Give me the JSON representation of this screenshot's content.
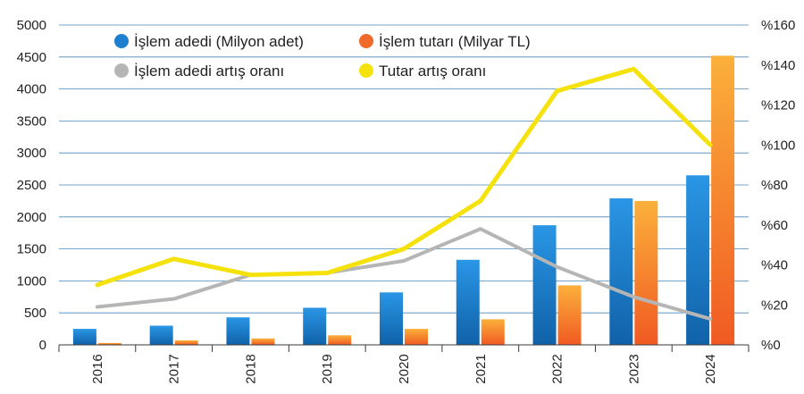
{
  "chart_data": {
    "type": "bar+line",
    "categories": [
      "2016",
      "2017",
      "2018",
      "2019",
      "2020",
      "2021",
      "2022",
      "2023",
      "2024"
    ],
    "series": [
      {
        "name": "İşlem adedi (Milyon adet)",
        "kind": "bar",
        "axis": "left",
        "color": "#1f7fcf",
        "values": [
          250,
          300,
          430,
          580,
          820,
          1330,
          1870,
          2290,
          2650
        ]
      },
      {
        "name": "İşlem tutarı (Milyar TL)",
        "kind": "bar",
        "axis": "left",
        "color": "#f26a2a",
        "values": [
          30,
          70,
          100,
          150,
          250,
          400,
          930,
          2250,
          4520
        ]
      },
      {
        "name": "İşlem adedi artış oranı",
        "kind": "line",
        "axis": "right",
        "color": "#b5b5b5",
        "values": [
          19,
          23,
          35,
          36,
          42,
          58,
          39,
          24,
          13
        ]
      },
      {
        "name": "Tutar artış oranı",
        "kind": "line",
        "axis": "right",
        "color": "#f5e20c",
        "values": [
          30,
          43,
          35,
          36,
          48,
          72,
          127,
          138,
          100
        ]
      }
    ],
    "y_left": {
      "min": 0,
      "max": 5000,
      "ticks": [
        "0",
        "500",
        "1000",
        "1500",
        "2000",
        "2500",
        "3000",
        "3500",
        "4000",
        "4500",
        "5000"
      ]
    },
    "y_right": {
      "min": 0,
      "max": 160,
      "ticks": [
        "%0",
        "%20",
        "%40",
        "%60",
        "%80",
        "%100",
        "%120",
        "%140",
        "%160"
      ]
    },
    "grid": true,
    "legend_position": "top-left"
  }
}
